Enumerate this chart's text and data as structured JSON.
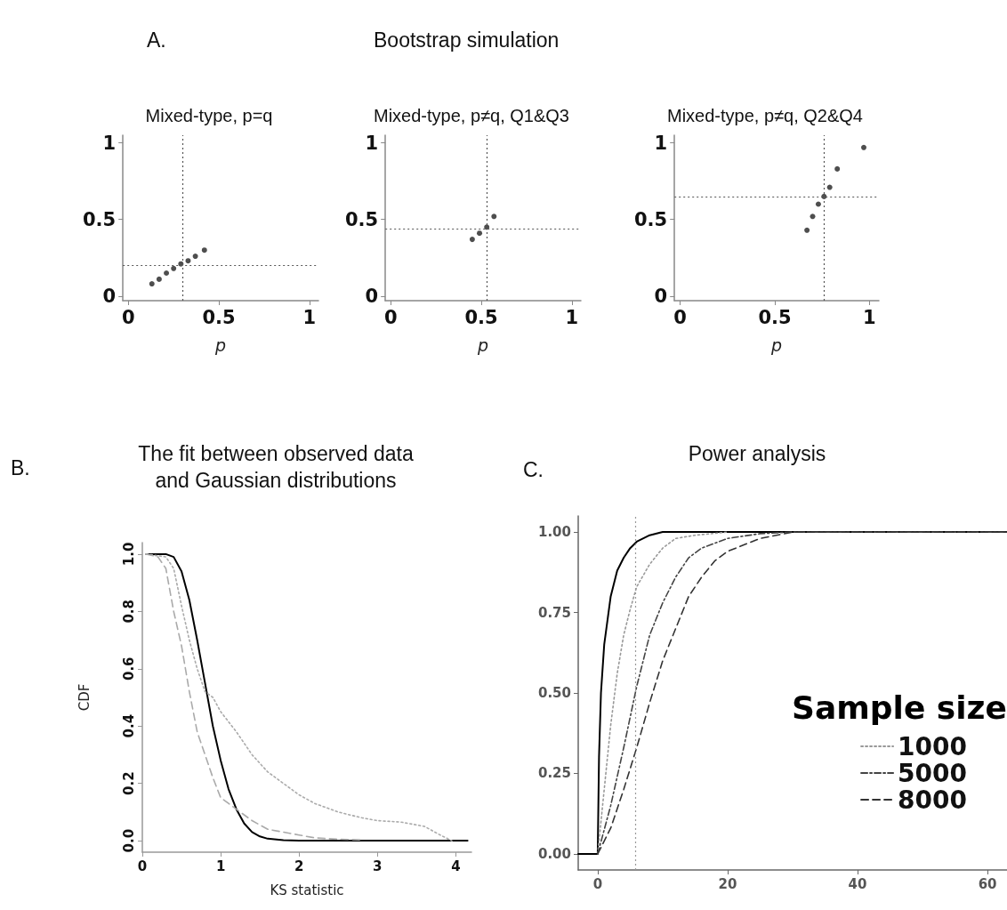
{
  "chart_data": [
    {
      "type": "scatter",
      "title": "Mixed-type, p=q",
      "annotations": [
        "A.",
        "Bootstrap simulation"
      ],
      "xlabel": "p",
      "xlim": [
        -0.03,
        1.05
      ],
      "ylim": [
        -0.03,
        1.05
      ],
      "xticks": [
        0,
        0.5,
        1
      ],
      "yticks": [
        0,
        0.5,
        1
      ],
      "marker": "circle",
      "series": [
        {
          "color": "#222222",
          "x": [
            0.13,
            0.17,
            0.21,
            0.25,
            0.29,
            0.33,
            0.37,
            0.42
          ],
          "values": [
            0.08,
            0.11,
            0.15,
            0.18,
            0.21,
            0.23,
            0.26,
            0.3
          ]
        }
      ],
      "ref_lines": [
        {
          "axis": "x",
          "value": 0.3,
          "color": "#555555",
          "line_style": "dotted"
        },
        {
          "axis": "y",
          "value": 0.2,
          "color": "#555555",
          "line_style": "dotted"
        }
      ]
    },
    {
      "type": "scatter",
      "title": "Mixed-type, p≠q, Q1&Q3",
      "xlabel": "p",
      "xlim": [
        -0.03,
        1.05
      ],
      "ylim": [
        -0.03,
        1.05
      ],
      "xticks": [
        0,
        0.5,
        1
      ],
      "yticks": [
        0,
        0.5,
        1
      ],
      "marker": "circle",
      "series": [
        {
          "color": "#222222",
          "x": [
            0.45,
            0.49,
            0.53,
            0.57
          ],
          "values": [
            0.37,
            0.41,
            0.45,
            0.52
          ]
        }
      ],
      "ref_lines": [
        {
          "axis": "x",
          "value": 0.53,
          "color": "#555555",
          "line_style": "dotted"
        },
        {
          "axis": "y",
          "value": 0.44,
          "color": "#555555",
          "line_style": "dotted"
        }
      ]
    },
    {
      "type": "scatter",
      "title": "Mixed-type, p≠q, Q2&Q4",
      "xlabel": "p",
      "xlim": [
        -0.03,
        1.05
      ],
      "ylim": [
        -0.03,
        1.05
      ],
      "xticks": [
        0,
        0.5,
        1
      ],
      "yticks": [
        0,
        0.5,
        1
      ],
      "marker": "circle",
      "series": [
        {
          "color": "#222222",
          "x": [
            0.67,
            0.7,
            0.73,
            0.76,
            0.79,
            0.83,
            0.97
          ],
          "values": [
            0.43,
            0.52,
            0.6,
            0.65,
            0.71,
            0.83,
            0.97
          ]
        }
      ],
      "ref_lines": [
        {
          "axis": "x",
          "value": 0.76,
          "color": "#555555",
          "line_style": "dotted"
        },
        {
          "axis": "y",
          "value": 0.65,
          "color": "#555555",
          "line_style": "dotted"
        }
      ]
    },
    {
      "type": "line",
      "title": "The fit between observed data\nand Gaussian distributions",
      "annotations": [
        "B."
      ],
      "xlabel": "KS statistic",
      "ylabel": "CDF",
      "xlim": [
        0,
        4.2
      ],
      "ylim": [
        -0.04,
        1.04
      ],
      "xticks": [
        0,
        1,
        2,
        3,
        4
      ],
      "yticks": [
        {
          "value": 0,
          "label": "0.0"
        },
        {
          "value": 0.2,
          "label": "0.2"
        },
        {
          "value": 0.4,
          "label": "0.4"
        },
        {
          "value": 0.6,
          "label": "0.6"
        },
        {
          "value": 0.8,
          "label": "0.8"
        },
        {
          "value": 1,
          "label": "1.0"
        }
      ],
      "marker": "none",
      "series": [
        {
          "color": "#000000",
          "line_style": "solid",
          "x": [
            0.05,
            0.3,
            0.4,
            0.5,
            0.6,
            0.7,
            0.8,
            0.9,
            1.0,
            1.1,
            1.2,
            1.3,
            1.4,
            1.5,
            1.6,
            1.8,
            2.0,
            2.5,
            3,
            4.15
          ],
          "values": [
            1,
            1,
            0.99,
            0.94,
            0.84,
            0.7,
            0.55,
            0.4,
            0.28,
            0.18,
            0.11,
            0.06,
            0.03,
            0.015,
            0.007,
            0.002,
            0,
            0,
            0,
            0
          ]
        },
        {
          "color": "#aaaaaa",
          "line_style": "dashed",
          "x": [
            0.05,
            0.2,
            0.3,
            0.4,
            0.5,
            0.6,
            0.7,
            0.8,
            0.9,
            1.0,
            1.1,
            1.2,
            1.4,
            1.6,
            1.8,
            2.0,
            2.2,
            2.5,
            2.8
          ],
          "values": [
            1,
            0.99,
            0.95,
            0.8,
            0.68,
            0.52,
            0.38,
            0.3,
            0.22,
            0.15,
            0.13,
            0.11,
            0.07,
            0.04,
            0.03,
            0.02,
            0.01,
            0.005,
            0.003
          ]
        },
        {
          "color": "#aaaaaa",
          "line_style": "dotted",
          "x": [
            0.05,
            0.3,
            0.4,
            0.5,
            0.6,
            0.7,
            0.8,
            0.9,
            1.0,
            1.2,
            1.4,
            1.6,
            1.8,
            2.0,
            2.2,
            2.5,
            2.8,
            3.0,
            3.3,
            3.6,
            3.8,
            3.95
          ],
          "values": [
            1,
            0.99,
            0.95,
            0.82,
            0.7,
            0.6,
            0.52,
            0.5,
            0.45,
            0.38,
            0.3,
            0.24,
            0.2,
            0.16,
            0.13,
            0.1,
            0.08,
            0.07,
            0.065,
            0.05,
            0.02,
            0
          ]
        }
      ]
    },
    {
      "type": "line",
      "title": "Power analysis",
      "annotations": [
        "C."
      ],
      "legend_title": "Sample size",
      "legend": "bottom right",
      "xlim": [
        -3,
        63
      ],
      "ylim": [
        -0.05,
        1.05
      ],
      "xticks": [
        0,
        20,
        40,
        60
      ],
      "yticks": [
        {
          "value": 0,
          "label": "0.00"
        },
        {
          "value": 0.25,
          "label": "0.25"
        },
        {
          "value": 0.5,
          "label": "0.50"
        },
        {
          "value": 0.75,
          "label": "0.75"
        },
        {
          "value": 1,
          "label": "1.00"
        }
      ],
      "marker": "none",
      "series": [
        {
          "color": "#000000",
          "line_style": "solid",
          "x": [
            -3,
            0,
            0.2,
            0.5,
            1,
            2,
            3,
            4,
            5,
            6,
            8,
            10,
            63
          ],
          "values": [
            0,
            0,
            0.3,
            0.5,
            0.65,
            0.8,
            0.88,
            0.92,
            0.95,
            0.97,
            0.99,
            1,
            1
          ]
        },
        {
          "name": "1000",
          "color": "#999999",
          "line_style": "dotted",
          "x": [
            0,
            1,
            2,
            3,
            4,
            5,
            6,
            8,
            10,
            12,
            15,
            20
          ],
          "values": [
            0,
            0.2,
            0.4,
            0.56,
            0.68,
            0.76,
            0.83,
            0.9,
            0.95,
            0.98,
            0.99,
            1
          ]
        },
        {
          "name": "5000",
          "color": "#444444",
          "line_style": "dashdot",
          "x": [
            0,
            2,
            4,
            6,
            8,
            10,
            12,
            14,
            16,
            20,
            25,
            30,
            63
          ],
          "values": [
            0,
            0.15,
            0.33,
            0.52,
            0.68,
            0.78,
            0.86,
            0.92,
            0.95,
            0.98,
            0.995,
            1,
            1
          ]
        },
        {
          "name": "8000",
          "color": "#333333",
          "line_style": "dashed",
          "x": [
            0,
            2,
            4,
            6,
            8,
            10,
            12,
            14,
            16,
            18,
            20,
            25,
            30,
            63
          ],
          "values": [
            0,
            0.08,
            0.2,
            0.33,
            0.47,
            0.6,
            0.7,
            0.8,
            0.86,
            0.91,
            0.94,
            0.98,
            1,
            1
          ]
        }
      ],
      "ref_lines": [
        {
          "axis": "x",
          "value": 5.8,
          "color": "#999999",
          "line_style": "dotted"
        }
      ]
    }
  ]
}
